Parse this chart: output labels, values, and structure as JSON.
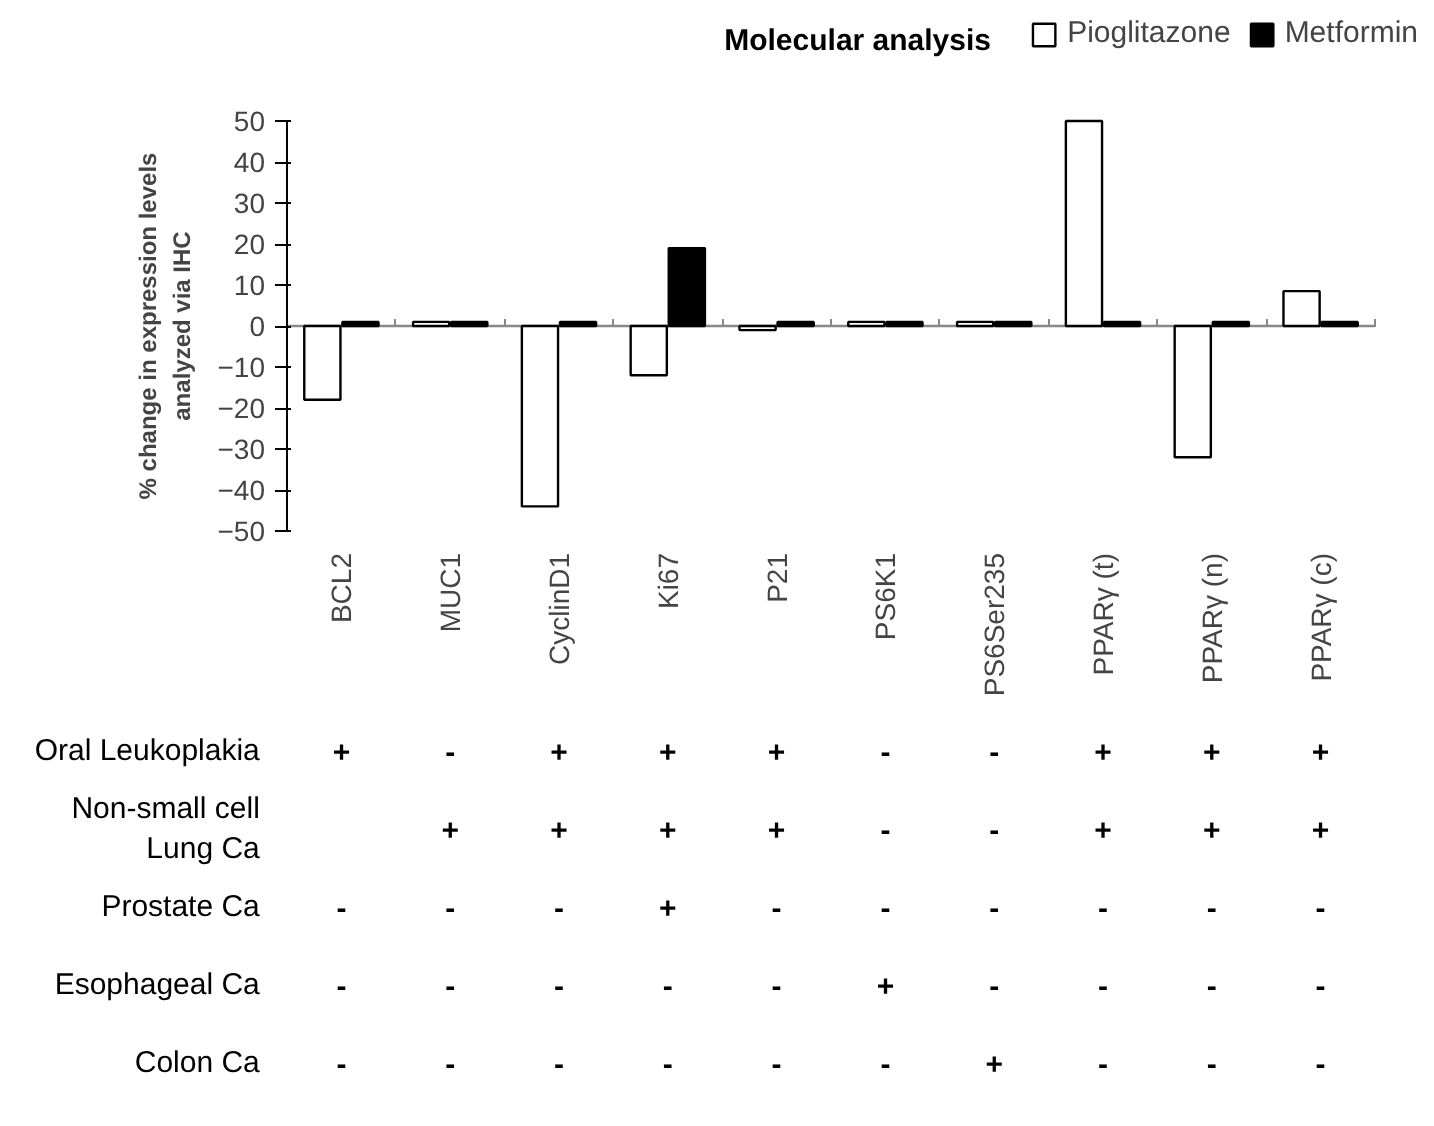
{
  "chart_data": {
    "type": "bar",
    "title": "Molecular analysis",
    "ylabel": "% change in expression levels\nanalyzed via IHC",
    "categories": [
      "BCL2",
      "MUC1",
      "CyclinD1",
      "Ki67",
      "P21",
      "PS6K1",
      "PS6Ser235",
      "PPARγ (t)",
      "PPARγ (n)",
      "PPARγ (c)"
    ],
    "series": [
      {
        "name": "Pioglitazone",
        "color": "#ffffff",
        "values": [
          -18,
          1,
          -44,
          -12,
          -1,
          1,
          1,
          50,
          -32,
          8.5
        ]
      },
      {
        "name": "Metformin",
        "color": "#000000",
        "values": [
          1,
          1,
          1,
          19,
          1,
          1,
          1,
          1,
          1,
          1
        ]
      }
    ],
    "ylim": [
      -50,
      50
    ],
    "yticks": [
      -50,
      -40,
      -30,
      -20,
      -10,
      0,
      10,
      20,
      30,
      40,
      50
    ],
    "grid": false,
    "legend": "top right",
    "ref_lines": [
      {
        "axis": "y",
        "value": 0,
        "label": null,
        "color": "#888888"
      }
    ],
    "annotations": [
      "Oral Leukoplakia",
      "+",
      "-",
      "+",
      "+",
      "+",
      "-",
      "-",
      "+",
      "+",
      "+",
      "Non-small cell\nLung Ca",
      null,
      "+",
      "+",
      "+",
      "+",
      "-",
      "-",
      "+",
      "+",
      "+",
      "Prostate Ca",
      "-",
      "-",
      "-",
      "+",
      "-",
      "-",
      "-",
      "-",
      "-",
      "-",
      "Esophageal Ca",
      "-",
      "-",
      "-",
      "-",
      "-",
      "+",
      "-",
      "-",
      "-",
      "-",
      "Colon Ca",
      "-",
      "-",
      "-",
      "-",
      "-",
      "-",
      "+",
      "-",
      "-",
      "-"
    ]
  }
}
